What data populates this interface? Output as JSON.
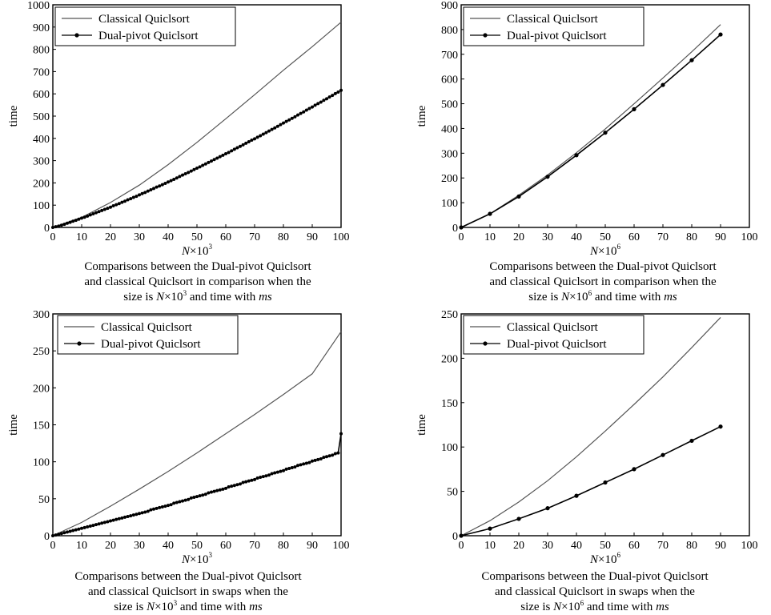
{
  "figure": {
    "panels": [
      {
        "caption": {
          "line1": "Comparisons between the Dual-pivot Quiclsort",
          "line2": "and classical Quiclsort in comparison when the",
          "line3_prefix": "size is ",
          "size_symbol": "N",
          "size_times": "×10",
          "size_exp": "3",
          "line3_middle": " and time with ",
          "unit": "ms"
        }
      },
      {
        "caption": {
          "line1": "Comparisons between the Dual-pivot Quiclsort",
          "line2": "and classical Quiclsort in comparison when the",
          "line3_prefix": "size is ",
          "size_symbol": "N",
          "size_times": "×10",
          "size_exp": "6",
          "line3_middle": " and time with ",
          "unit": "ms"
        }
      },
      {
        "caption": {
          "line1": "Comparisons between the Dual-pivot Quiclsort",
          "line2": "and classical Quiclsort in swaps when the",
          "line3_prefix": "size is ",
          "size_symbol": "N",
          "size_times": "×10",
          "size_exp": "3",
          "line3_middle": " and time with ",
          "unit": "ms"
        }
      },
      {
        "caption": {
          "line1": "Comparisons between the Dual-pivot Quiclsort",
          "line2": "and classical Quiclsort in swaps when the",
          "line3_prefix": "size is ",
          "size_symbol": "N",
          "size_times": "×10",
          "size_exp": "6",
          "line3_middle": " and time with ",
          "unit": "ms"
        }
      }
    ]
  },
  "chart_data": [
    {
      "type": "line",
      "ylabel": "time",
      "xlabel_symbol": "N",
      "xlabel_times": "×10",
      "xlabel_exp": "3",
      "xlim": [
        0,
        100
      ],
      "ylim": [
        0,
        1000
      ],
      "xticks": [
        0,
        10,
        20,
        30,
        40,
        50,
        60,
        70,
        80,
        90,
        100
      ],
      "yticks": [
        0,
        100,
        200,
        300,
        400,
        500,
        600,
        700,
        800,
        900,
        1000
      ],
      "legend_position": "top-left",
      "series": [
        {
          "name": "Classical Quiclsort",
          "marker": "none",
          "color": "#555555",
          "x": [
            0,
            10,
            20,
            30,
            40,
            50,
            60,
            70,
            80,
            90,
            100
          ],
          "y": [
            0,
            45,
            112,
            190,
            282,
            382,
            488,
            596,
            706,
            812,
            922
          ]
        },
        {
          "name": "Dual-pivot Quiclsort",
          "marker": "dot",
          "color": "#000000",
          "x": [
            0,
            1,
            2,
            3,
            4,
            5,
            6,
            7,
            8,
            9,
            10,
            11,
            12,
            13,
            14,
            15,
            16,
            17,
            18,
            19,
            20,
            21,
            22,
            23,
            24,
            25,
            26,
            27,
            28,
            29,
            30,
            31,
            32,
            33,
            34,
            35,
            36,
            37,
            38,
            39,
            40,
            41,
            42,
            43,
            44,
            45,
            46,
            47,
            48,
            49,
            50,
            51,
            52,
            53,
            54,
            55,
            56,
            57,
            58,
            59,
            60,
            61,
            62,
            63,
            64,
            65,
            66,
            67,
            68,
            69,
            70,
            71,
            72,
            73,
            74,
            75,
            76,
            77,
            78,
            79,
            80,
            81,
            82,
            83,
            84,
            85,
            86,
            87,
            88,
            89,
            90,
            91,
            92,
            93,
            94,
            95,
            96,
            97,
            98,
            99,
            100
          ],
          "y": [
            0,
            3,
            6,
            10,
            14,
            19,
            23,
            28,
            32,
            37,
            42,
            46,
            51,
            56,
            61,
            66,
            71,
            76,
            81,
            86,
            91,
            97,
            102,
            107,
            113,
            118,
            124,
            129,
            135,
            140,
            146,
            152,
            157,
            163,
            169,
            175,
            181,
            186,
            192,
            198,
            204,
            210,
            216,
            222,
            229,
            235,
            241,
            247,
            253,
            260,
            266,
            272,
            279,
            285,
            292,
            298,
            305,
            311,
            318,
            324,
            331,
            337,
            344,
            351,
            358,
            364,
            371,
            378,
            385,
            392,
            398,
            405,
            412,
            419,
            426,
            433,
            440,
            447,
            454,
            462,
            469,
            476,
            483,
            490,
            497,
            505,
            512,
            519,
            527,
            534,
            541,
            549,
            556,
            563,
            571,
            578,
            586,
            593,
            601,
            608,
            616
          ]
        }
      ]
    },
    {
      "type": "line",
      "ylabel": "time",
      "xlabel_symbol": "N",
      "xlabel_times": "×10",
      "xlabel_exp": "6",
      "xlim": [
        0,
        100
      ],
      "ylim": [
        0,
        900
      ],
      "xticks": [
        0,
        10,
        20,
        30,
        40,
        50,
        60,
        70,
        80,
        90,
        100
      ],
      "yticks": [
        0,
        100,
        200,
        300,
        400,
        500,
        600,
        700,
        800,
        900
      ],
      "legend_position": "top-left",
      "series": [
        {
          "name": "Classical Quiclsort",
          "marker": "none",
          "color": "#555555",
          "x": [
            0,
            10,
            20,
            30,
            40,
            50,
            60,
            70,
            80,
            90
          ],
          "y": [
            0,
            55,
            130,
            212,
            302,
            398,
            500,
            604,
            710,
            820
          ]
        },
        {
          "name": "Dual-pivot Quiclsort",
          "marker": "dot",
          "color": "#000000",
          "x": [
            0,
            10,
            20,
            30,
            40,
            50,
            60,
            70,
            80,
            90
          ],
          "y": [
            0,
            55,
            125,
            205,
            292,
            383,
            478,
            576,
            676,
            780
          ]
        }
      ]
    },
    {
      "type": "line",
      "ylabel": "time",
      "xlabel_symbol": "N",
      "xlabel_times": "×10",
      "xlabel_exp": "3",
      "xlim": [
        0,
        100
      ],
      "ylim": [
        0,
        300
      ],
      "xticks": [
        0,
        10,
        20,
        30,
        40,
        50,
        60,
        70,
        80,
        90,
        100
      ],
      "yticks": [
        0,
        50,
        100,
        150,
        200,
        250,
        300
      ],
      "legend_position": "top-right",
      "series": [
        {
          "name": "Classical Quiclsort",
          "marker": "none",
          "color": "#555555",
          "x": [
            0,
            10,
            20,
            30,
            40,
            50,
            60,
            70,
            80,
            90,
            100
          ],
          "y": [
            0,
            18,
            40,
            63,
            87,
            112,
            138,
            164,
            191,
            219,
            276
          ]
        },
        {
          "name": "Dual-pivot Quiclsort",
          "marker": "dot",
          "color": "#000000",
          "x": [
            0,
            1,
            2,
            3,
            4,
            5,
            6,
            7,
            8,
            9,
            10,
            11,
            12,
            13,
            14,
            15,
            16,
            17,
            18,
            19,
            20,
            21,
            22,
            23,
            24,
            25,
            26,
            27,
            28,
            29,
            30,
            31,
            32,
            33,
            34,
            35,
            36,
            37,
            38,
            39,
            40,
            41,
            42,
            43,
            44,
            45,
            46,
            47,
            48,
            49,
            50,
            51,
            52,
            53,
            54,
            55,
            56,
            57,
            58,
            59,
            60,
            61,
            62,
            63,
            64,
            65,
            66,
            67,
            68,
            69,
            70,
            71,
            72,
            73,
            74,
            75,
            76,
            77,
            78,
            79,
            80,
            81,
            82,
            83,
            84,
            85,
            86,
            87,
            88,
            89,
            90,
            91,
            92,
            93,
            94,
            95,
            96,
            97,
            98,
            99,
            100
          ],
          "y": [
            0,
            1,
            2,
            3,
            4,
            5,
            6,
            7,
            8,
            9,
            10,
            11,
            12,
            13,
            14,
            15,
            16,
            17,
            18,
            19,
            20,
            21,
            22,
            23,
            24,
            25,
            26,
            27,
            28,
            29,
            30,
            31,
            32,
            33,
            35,
            36,
            37,
            38,
            39,
            40,
            41,
            42,
            44,
            45,
            46,
            47,
            48,
            49,
            51,
            52,
            53,
            54,
            55,
            56,
            58,
            59,
            60,
            61,
            62,
            63,
            64,
            66,
            67,
            68,
            69,
            70,
            72,
            73,
            74,
            75,
            76,
            78,
            79,
            80,
            81,
            82,
            84,
            85,
            86,
            87,
            88,
            90,
            91,
            92,
            93,
            95,
            96,
            97,
            98,
            99,
            101,
            102,
            103,
            104,
            106,
            107,
            108,
            109,
            111,
            112,
            138
          ]
        }
      ]
    },
    {
      "type": "line",
      "ylabel": "time",
      "xlabel_symbol": "N",
      "xlabel_times": "×10",
      "xlabel_exp": "6",
      "xlim": [
        0,
        100
      ],
      "ylim": [
        0,
        250
      ],
      "xticks": [
        0,
        10,
        20,
        30,
        40,
        50,
        60,
        70,
        80,
        90,
        100
      ],
      "yticks": [
        0,
        50,
        100,
        150,
        200,
        250
      ],
      "legend_position": "top-left",
      "series": [
        {
          "name": "Classical Quiclsort",
          "marker": "none",
          "color": "#555555",
          "x": [
            0,
            10,
            20,
            30,
            40,
            50,
            60,
            70,
            80,
            90
          ],
          "y": [
            0,
            17,
            38,
            62,
            89,
            118,
            148,
            179,
            212,
            246
          ]
        },
        {
          "name": "Dual-pivot Quiclsort",
          "marker": "dot",
          "color": "#000000",
          "x": [
            0,
            10,
            20,
            30,
            40,
            50,
            60,
            70,
            80,
            90
          ],
          "y": [
            0,
            8,
            19,
            31,
            45,
            60,
            75,
            91,
            107,
            123
          ]
        }
      ]
    }
  ]
}
